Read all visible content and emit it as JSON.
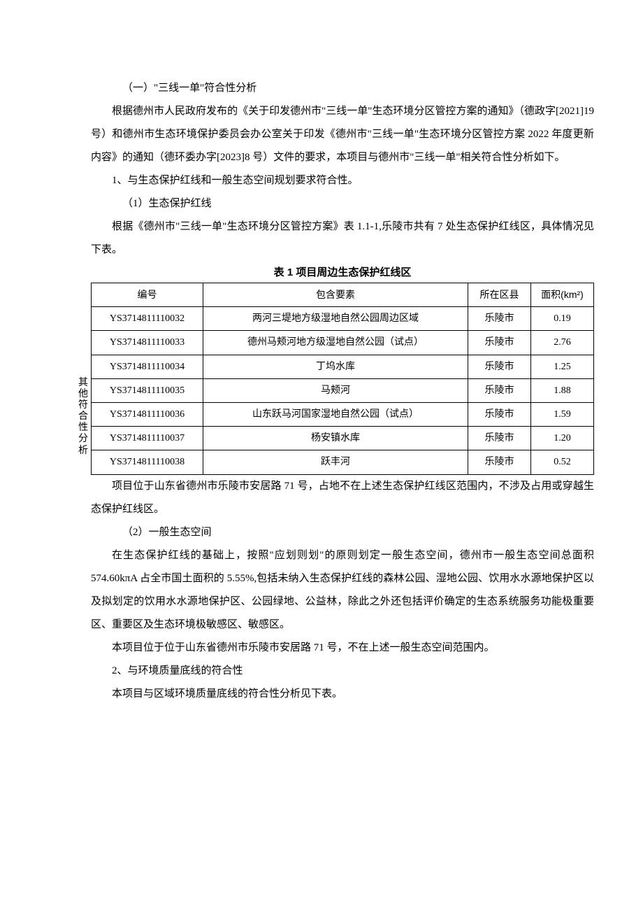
{
  "sideLabel": "其他符合性分析",
  "heading1": "（一）\"三线一单\"符合性分析",
  "para1": "根据德州市人民政府发布的《关于印发德州市\"三线一单\"生态环境分区管控方案的通知》（德政字[2021]19 号）和德州市生态环境保护委员会办公室关于印发《德州市\"三线一单\"生态环境分区管控方案 2022 年度更新内容》的通知（德环委办字[2023]8 号）文件的要求，本项目与德州市\"三线一单\"相关符合性分析如下。",
  "point1": "1、与生态保护红线和一般生态空间规划要求符合性。",
  "sub1": "（1）生态保护红线",
  "para2": "根据《德州市\"三线一单\"生态环境分区管控方案》表 1.1-1,乐陵市共有 7 处生态保护红线区，具体情况见下表。",
  "tableTitle": "表 1 项目周边生态保护红线区",
  "table": {
    "columns": [
      "编号",
      "包含要素",
      "所在区县",
      "面积(km²)"
    ],
    "rows": [
      [
        "YS3714811110032",
        "两河三堤地方级湿地自然公园周边区域",
        "乐陵市",
        "0.19"
      ],
      [
        "YS3714811110033",
        "德州马颊河地方级湿地自然公园（试点）",
        "乐陵市",
        "2.76"
      ],
      [
        "YS3714811110034",
        "丁坞水库",
        "乐陵市",
        "1.25"
      ],
      [
        "YS3714811110035",
        "马颊河",
        "乐陵市",
        "1.88"
      ],
      [
        "YS3714811110036",
        "山东跃马河国家湿地自然公园（试点）",
        "乐陵市",
        "1.59"
      ],
      [
        "YS3714811110037",
        "杨安镇水库",
        "乐陵市",
        "1.20"
      ],
      [
        "YS3714811110038",
        "跃丰河",
        "乐陵市",
        "0.52"
      ]
    ]
  },
  "para3": "项目位于山东省德州市乐陵市安居路 71 号，占地不在上述生态保护红线区范围内，不涉及占用或穿越生态保护红线区。",
  "sub2": "（2）一般生态空间",
  "para4": "在生态保护红线的基础上，按照\"应划则划\"的原则划定一般生态空间，德州市一般生态空间总面积 574.60kπA 占全市国土面积的 5.55%,包括未纳入生态保护红线的森林公园、湿地公园、饮用水水源地保护区以及拟划定的饮用水水源地保护区、公园绿地、公益林，除此之外还包括评价确定的生态系统服务功能极重要区、重要区及生态环境极敏感区、敏感区。",
  "para5": "本项目位于位于山东省德州市乐陵市安居路 71 号，不在上述一般生态空间范围内。",
  "point2": "2、与环境质量底线的符合性",
  "para6": "本项目与区域环境质量底线的符合性分析见下表。"
}
